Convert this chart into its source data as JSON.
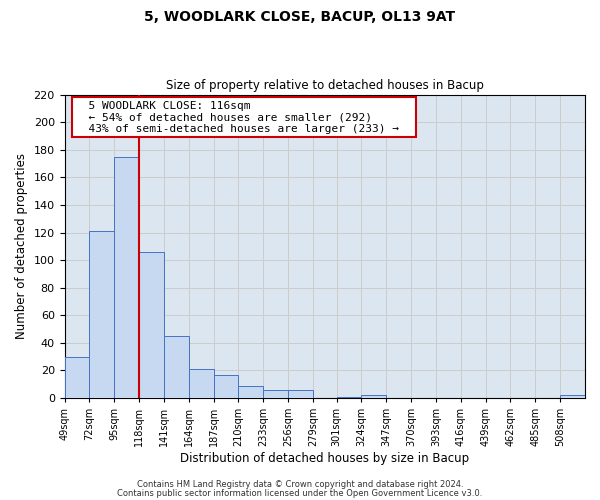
{
  "title": "5, WOODLARK CLOSE, BACUP, OL13 9AT",
  "subtitle": "Size of property relative to detached houses in Bacup",
  "xlabel": "Distribution of detached houses by size in Bacup",
  "ylabel": "Number of detached properties",
  "bin_edges": [
    49,
    72,
    95,
    118,
    141,
    164,
    187,
    210,
    233,
    256,
    279,
    301,
    324,
    347,
    370,
    393,
    416,
    439,
    462,
    485,
    508,
    531
  ],
  "bar_heights": [
    30,
    121,
    175,
    106,
    45,
    21,
    17,
    9,
    6,
    6,
    0,
    1,
    2,
    0,
    0,
    0,
    0,
    0,
    0,
    0,
    2
  ],
  "bar_color": "#c6d9f1",
  "bar_edge_color": "#4472c4",
  "vline_x": 118,
  "vline_color": "#cc0000",
  "ylim": [
    0,
    220
  ],
  "yticks": [
    0,
    20,
    40,
    60,
    80,
    100,
    120,
    140,
    160,
    180,
    200,
    220
  ],
  "xtick_labels": [
    "49sqm",
    "72sqm",
    "95sqm",
    "118sqm",
    "141sqm",
    "164sqm",
    "187sqm",
    "210sqm",
    "233sqm",
    "256sqm",
    "279sqm",
    "301sqm",
    "324sqm",
    "347sqm",
    "370sqm",
    "393sqm",
    "416sqm",
    "439sqm",
    "462sqm",
    "485sqm",
    "508sqm"
  ],
  "annotation_title": "5 WOODLARK CLOSE: 116sqm",
  "annotation_line1": "← 54% of detached houses are smaller (292)",
  "annotation_line2": "43% of semi-detached houses are larger (233) →",
  "annotation_box_color": "#ffffff",
  "annotation_box_edge_color": "#cc0000",
  "grid_color": "#cccccc",
  "bg_color": "#dce6f1",
  "footer1": "Contains HM Land Registry data © Crown copyright and database right 2024.",
  "footer2": "Contains public sector information licensed under the Open Government Licence v3.0."
}
